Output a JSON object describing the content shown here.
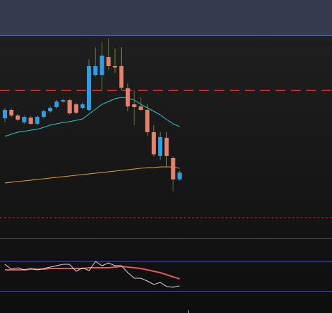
{
  "chart_data": [
    {
      "type": "candlestick",
      "open": [
        172,
        184,
        176,
        166,
        173,
        164,
        174,
        182,
        188,
        196,
        198,
        192,
        187,
        184,
        234,
        234,
        260,
        247,
        247,
        215,
        192,
        189,
        184,
        152,
        118,
        144,
        115,
        84
      ],
      "high": [
        187,
        186,
        178,
        176,
        175,
        176,
        184,
        190,
        198,
        200,
        200,
        194,
        194,
        257,
        274,
        282,
        287,
        272,
        274,
        222,
        212,
        202,
        192,
        162,
        152,
        152,
        117,
        97
      ],
      "low": [
        167,
        174,
        168,
        164,
        162,
        162,
        172,
        180,
        186,
        194,
        177,
        178,
        185,
        182,
        232,
        212,
        242,
        237,
        212,
        182,
        162,
        182,
        147,
        117,
        112,
        102,
        67,
        82
      ],
      "close": [
        184,
        176,
        170,
        174,
        164,
        174,
        182,
        187,
        196,
        198,
        179,
        180,
        192,
        247,
        247,
        262,
        247,
        245,
        216,
        189,
        188,
        184,
        152,
        120,
        145,
        118,
        84,
        94
      ],
      "up_color": "#2e9fe6",
      "down_color": "#e4826c",
      "ylim": [
        0,
        290
      ],
      "series": [
        {
          "color": "#2fc9c9",
          "values": [
            146,
            149,
            152,
            153,
            155,
            156,
            159,
            162,
            164,
            166,
            167,
            169,
            171,
            178,
            185,
            192,
            196,
            200,
            202,
            201,
            198,
            192,
            187,
            182,
            177,
            170,
            164,
            160
          ]
        },
        {
          "color": "#e0a030",
          "values": [
            79,
            80,
            81,
            82,
            83,
            84,
            85,
            86,
            87,
            88,
            89,
            90,
            91,
            92,
            93,
            94,
            95,
            96,
            97,
            98,
            99,
            100,
            101,
            101,
            102,
            102,
            102,
            100
          ]
        }
      ],
      "hlines": [
        {
          "value": 212,
          "color": "#e02020",
          "style": "dashed"
        },
        {
          "value": 29,
          "color": "#d02020",
          "style": "dotted"
        }
      ]
    },
    {
      "type": "line",
      "ylim": [
        0,
        44
      ],
      "series": [
        {
          "color": "#e05a5a",
          "values": [
            31,
            31,
            31,
            31,
            32,
            32,
            32,
            33,
            33,
            33,
            33,
            33,
            33,
            34,
            34,
            34,
            34,
            35,
            36,
            35,
            34,
            33,
            31,
            29,
            27,
            24,
            21,
            18
          ]
        },
        {
          "color": "#dddddd",
          "values": [
            39,
            32,
            34,
            31,
            33,
            31,
            33,
            35,
            37,
            39,
            39,
            29,
            34,
            30,
            43,
            37,
            41,
            37,
            37,
            27,
            19,
            19,
            15,
            10,
            13,
            7,
            6,
            8
          ]
        }
      ]
    }
  ]
}
